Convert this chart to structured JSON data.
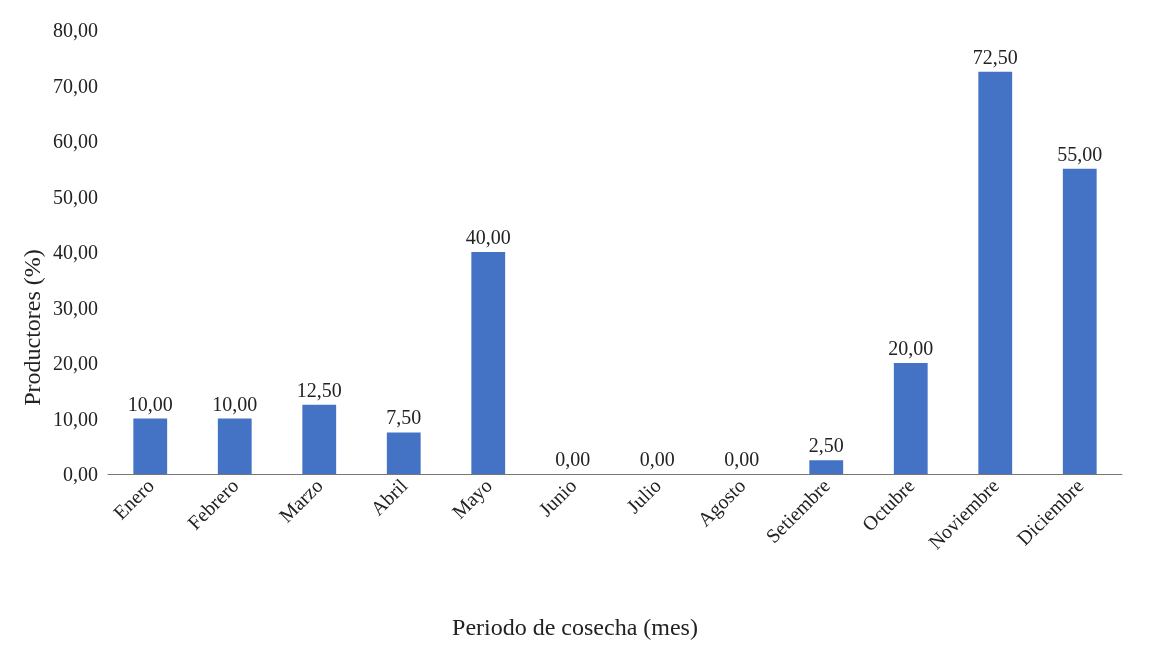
{
  "chart_data": {
    "type": "bar",
    "xlabel": "Periodo de cosecha (mes)",
    "ylabel": "Productores (%)",
    "categories": [
      "Enero",
      "Febrero",
      "Marzo",
      "Abril",
      "Mayo",
      "Junio",
      "Julio",
      "Agosto",
      "Setiembre",
      "Octubre",
      "Noviembre",
      "Diciembre"
    ],
    "values": [
      10,
      10,
      12.5,
      7.5,
      40,
      0,
      0,
      0,
      2.5,
      20,
      72.5,
      55
    ],
    "value_labels": [
      "10,00",
      "10,00",
      "12,50",
      "7,50",
      "40,00",
      "0,00",
      "0,00",
      "0,00",
      "2,50",
      "20,00",
      "72,50",
      "55,00"
    ],
    "color": "#4472c4",
    "ylim": [
      0,
      80
    ],
    "yticks": [
      {
        "value": 0,
        "label": "0,00"
      },
      {
        "value": 10,
        "label": "10,00"
      },
      {
        "value": 20,
        "label": "20,00"
      },
      {
        "value": 30,
        "label": "30,00"
      },
      {
        "value": 40,
        "label": "40,00"
      },
      {
        "value": 50,
        "label": "50,00"
      },
      {
        "value": 60,
        "label": "60,00"
      },
      {
        "value": 70,
        "label": "70,00"
      },
      {
        "value": 80,
        "label": "80,00"
      }
    ],
    "grid": false
  }
}
